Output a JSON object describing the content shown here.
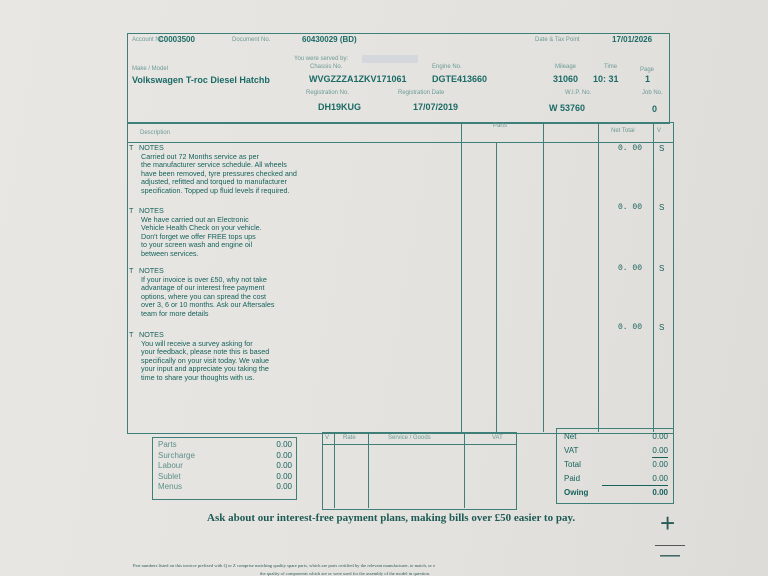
{
  "header": {
    "account_label": "Account No.",
    "account_no": "C0003500",
    "document_label": "Document No.",
    "document_no": "60430029 (BD)",
    "date_label": "Date & Tax Point",
    "date": "17/01/2026",
    "served_by_label": "You were served by:",
    "make_label": "Make / Model",
    "make": "Volkswagen T-roc Diesel Hatchb",
    "chassis_label": "Chassis No.",
    "chassis": "WVGZZZA1ZKV171061",
    "engine_label": "Engine No.",
    "engine": "DGTE413660",
    "mileage_label": "Mileage",
    "mileage": "31060",
    "time_label": "Time",
    "time": "10: 31",
    "page_label": "Page",
    "page": "1",
    "reg_label": "Registration No.",
    "reg": "DH19KUG",
    "reg_date_label": "Registration Date",
    "reg_date": "17/07/2019",
    "wip_label": "W.I.P. No.",
    "wip": "W 53760",
    "job_label": "Job No.",
    "job": "0"
  },
  "table": {
    "col_description": "Description",
    "col_parts": "Parts",
    "col_net_total": "Net Total",
    "col_v": "V",
    "rows": [
      {
        "type": "T",
        "title": "NOTES",
        "body": "Carried out 72 Months service as per\nthe manufacturer service schedule. All wheels\nhave been removed, tyre pressures checked and\nadjusted, refitted and torqued to manufacturer\nspecification. Topped up fluid levels if required.",
        "net": "0. 00",
        "v": "S"
      },
      {
        "type": "T",
        "title": "NOTES",
        "body": "We have carried out an Electronic\nVehicle Health Check on your vehicle.\nDon't forget we offer FREE tops ups\nto your screen wash and engine oil\nbetween services.",
        "net": "0. 00",
        "v": "S"
      },
      {
        "type": "T",
        "title": "NOTES",
        "body": "If your invoice is over £50, why not take\nadvantage of our interest free payment\noptions, where you can spread the cost\nover 3, 6 or 10 months. Ask our Aftersales\nteam for more details",
        "net": "0. 00",
        "v": "S"
      },
      {
        "type": "T",
        "title": "NOTES",
        "body": "You will receive a survey asking for\nyour feedback, please note this is based\nspecifically on your visit today. We value\nyour input and appreciate you taking the\ntime to share your thoughts with us.",
        "net": "0. 00",
        "v": "S"
      }
    ]
  },
  "breakdown": [
    {
      "label": "Parts",
      "value": "0.00"
    },
    {
      "label": "Surcharge",
      "value": "0.00"
    },
    {
      "label": "Labour",
      "value": "0.00"
    },
    {
      "label": "Sublet",
      "value": "0.00"
    },
    {
      "label": "Menus",
      "value": "0.00"
    }
  ],
  "vat_table": {
    "col_v": "V",
    "col_rate": "Rate",
    "col_service": "Service / Goods",
    "col_vat": "VAT"
  },
  "totals": [
    {
      "label": "Net",
      "value": "0.00"
    },
    {
      "label": "VAT",
      "value": "0.00"
    },
    {
      "label": "Total",
      "value": "0.00"
    },
    {
      "label": "Paid",
      "value": "0.00"
    },
    {
      "label": "Owing",
      "value": "0.00"
    }
  ],
  "footer": {
    "promo": "Ask about our interest-free payment plans, making bills over £50 easier to pay.",
    "fine_print": "Part numbers listed on this invoice prefixed with Q or Z comprise matching quality spare parts, which are parts certified by the relevant manufacturer, to match, or e",
    "fine_print_2": "the quality of components which are or were used for the assembly of the model in question."
  },
  "controls": {
    "zoom_in": "+",
    "zoom_out": "—"
  }
}
